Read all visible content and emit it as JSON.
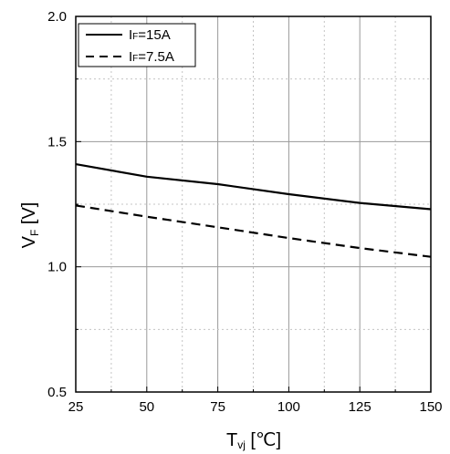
{
  "chart_data": {
    "type": "line",
    "x": [
      25,
      50,
      75,
      100,
      125,
      150
    ],
    "series": [
      {
        "name_main": "I",
        "name_sub": "F",
        "name_rest": "=15A",
        "style": "solid",
        "values": [
          1.41,
          1.36,
          1.33,
          1.29,
          1.255,
          1.23
        ]
      },
      {
        "name_main": "I",
        "name_sub": "F",
        "name_rest": "=7.5A",
        "style": "dashed",
        "values": [
          1.245,
          1.2,
          1.158,
          1.115,
          1.075,
          1.04
        ]
      }
    ],
    "xlabel": {
      "main": "T",
      "sub": "vj",
      "unit": " [℃]"
    },
    "ylabel": {
      "main": "V",
      "sub": "F",
      "unit": " [V]"
    },
    "xlim": [
      25,
      150
    ],
    "ylim": [
      0.5,
      2.0
    ],
    "xticks": [
      25,
      50,
      75,
      100,
      125,
      150
    ],
    "xtick_labels": [
      "25",
      "50",
      "75",
      "100",
      "125",
      "150"
    ],
    "yticks": [
      0.5,
      1.0,
      1.5,
      2.0
    ],
    "ytick_labels": [
      "0.5",
      "1.0",
      "1.5",
      "2.0"
    ],
    "grid": true,
    "legend_position": "top-left",
    "line_color": "#000000"
  }
}
